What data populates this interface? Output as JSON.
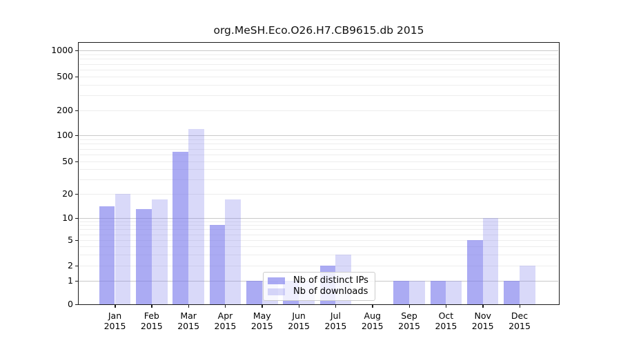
{
  "chart_data": {
    "type": "bar",
    "title": "org.MeSH.Eco.O26.H7.CB9615.db 2015",
    "categories": [
      "Jan",
      "Feb",
      "Mar",
      "Apr",
      "May",
      "Jun",
      "Jul",
      "Aug",
      "Sep",
      "Oct",
      "Nov",
      "Dec"
    ],
    "year_label": "2015",
    "series": [
      {
        "name": "Nb of distinct IPs",
        "color": "rgba(120,120,235,0.62)",
        "values": [
          14,
          13,
          65,
          8,
          1,
          1,
          2,
          0,
          1,
          1,
          5,
          1
        ]
      },
      {
        "name": "Nb of downloads",
        "color": "rgba(120,120,235,0.28)",
        "values": [
          20,
          17,
          120,
          17,
          1,
          1,
          3,
          0,
          1,
          1,
          10,
          2
        ]
      }
    ],
    "y_axis": {
      "scale": "log-like",
      "ticks": [
        0,
        1,
        2,
        5,
        10,
        20,
        50,
        100,
        200,
        500,
        1000
      ],
      "ylim": [
        0,
        1000
      ],
      "major_gridlines_at": [
        1,
        10,
        100,
        1000
      ]
    },
    "x_axis": {
      "label_format": "month over year"
    },
    "grid": "on",
    "legend": {
      "position": "inside-bottom-center",
      "items": [
        "Nb of distinct IPs",
        "Nb of downloads"
      ]
    },
    "accent_color": "#7878eb",
    "background_color": "#ffffff"
  }
}
